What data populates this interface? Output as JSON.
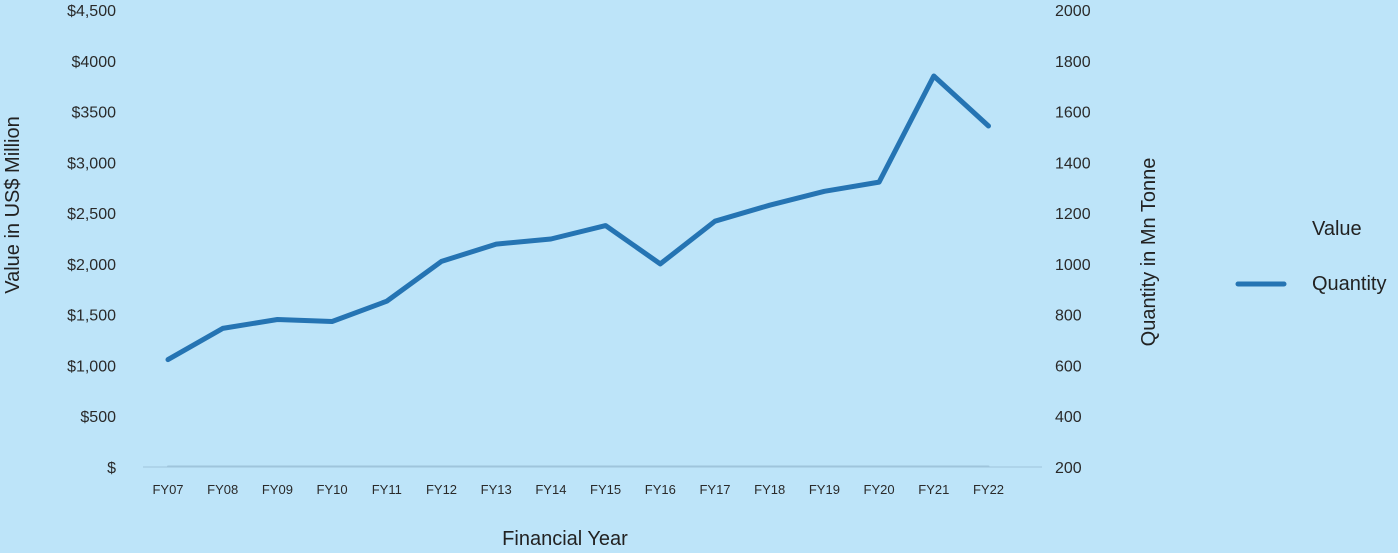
{
  "chart_data": {
    "type": "line",
    "xlabel": "Financial Year",
    "ylabel_left": "Value in US$ Million",
    "ylabel_right": "Quantity in Mn Tonne",
    "categories": [
      "FY07",
      "FY08",
      "FY09",
      "FY10",
      "FY11",
      "FY12",
      "FY13",
      "FY14",
      "FY15",
      "FY16",
      "FY17",
      "FY18",
      "FY19",
      "FY20",
      "FY21",
      "FY22"
    ],
    "left_axis": {
      "ylim": [
        0,
        4500
      ],
      "ticks": [
        0,
        500,
        1000,
        1500,
        2000,
        2500,
        3000,
        3500,
        4000,
        4500
      ],
      "tick_labels": [
        "$",
        "$500",
        "$1,000",
        "$1,500",
        "$2,000",
        "$2,500",
        "$3,000",
        "$3500",
        "$4000",
        "$4,500"
      ]
    },
    "right_axis": {
      "ylim": [
        200,
        2000
      ],
      "ticks": [
        200,
        400,
        600,
        800,
        1000,
        1200,
        1400,
        1600,
        1800,
        2000
      ],
      "tick_labels": [
        "200",
        "400",
        "600",
        "800",
        "1000",
        "1200",
        "1400",
        "1600",
        "1800",
        "2000"
      ]
    },
    "series": [
      {
        "name": "Value",
        "axis": "left",
        "values": [
          5,
          5,
          5,
          5,
          5,
          5,
          5,
          5,
          5,
          5,
          5,
          5,
          5,
          5,
          5,
          5
        ],
        "color": "#9fc5dc"
      },
      {
        "name": "Quantity",
        "axis": "right",
        "values": [
          623,
          746,
          781,
          773,
          853,
          1010,
          1078,
          1098,
          1151,
          1000,
          1168,
          1231,
          1286,
          1322,
          1740,
          1543
        ],
        "color": "#2574b3"
      }
    ],
    "grid": false,
    "legend_position": "right"
  }
}
